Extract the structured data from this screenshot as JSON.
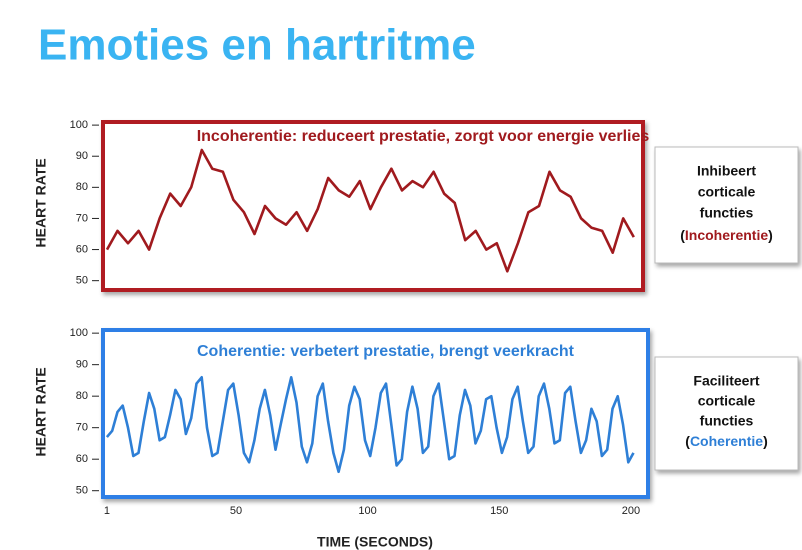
{
  "title": "Emoties en hartritme",
  "chart_data": [
    {
      "type": "line",
      "title": "Incoherentie: reduceert prestatie, zorgt voor energie verlies",
      "ylabel": "HEART RATE",
      "ylim": [
        47,
        101
      ],
      "yticks": [
        50,
        60,
        70,
        80,
        90,
        100
      ],
      "xlim": [
        -0.5,
        204.5
      ],
      "frame_color": "#b01c22",
      "x": [
        1,
        5,
        9,
        13,
        17,
        21,
        25,
        29,
        33,
        37,
        41,
        45,
        49,
        53,
        57,
        61,
        65,
        69,
        73,
        77,
        81,
        85,
        89,
        93,
        97,
        101,
        105,
        109,
        113,
        117,
        121,
        125,
        129,
        133,
        137,
        141,
        145,
        149,
        153,
        157,
        161,
        165,
        169,
        173,
        177,
        181,
        185,
        189,
        193,
        197,
        201
      ],
      "series": [
        {
          "color": "#a01a1e",
          "values": [
            60,
            66,
            62,
            66,
            60,
            70,
            78,
            74,
            80,
            92,
            86,
            85,
            76,
            72,
            65,
            74,
            70,
            68,
            72,
            66,
            73,
            83,
            79,
            77,
            82,
            73,
            80,
            86,
            79,
            82,
            80,
            85,
            78,
            75,
            63,
            66,
            60,
            62,
            53,
            62,
            72,
            74,
            85,
            79,
            77,
            70,
            67,
            66,
            59,
            70,
            64
          ]
        }
      ],
      "annotation": [
        "Inhibeert",
        "corticale",
        "functies"
      ],
      "annotation_last": [
        "(",
        "Incoherentie",
        ")"
      ]
    },
    {
      "type": "line",
      "title": "Coherentie: verbetert prestatie, brengt veerkracht",
      "ylabel": "HEART RATE",
      "ylim": [
        48,
        101
      ],
      "yticks": [
        50,
        60,
        70,
        80,
        90,
        100
      ],
      "xlim": [
        -0.5,
        206.5
      ],
      "xlabel": "TIME (SECONDS)",
      "xticks": [
        1,
        50,
        100,
        150,
        200
      ],
      "frame_color": "#2f7fe6",
      "x": [
        1,
        3,
        5,
        7,
        9,
        11,
        13,
        15,
        17,
        19,
        21,
        23,
        25,
        27,
        29,
        31,
        33,
        35,
        37,
        39,
        41,
        43,
        45,
        47,
        49,
        51,
        53,
        55,
        57,
        59,
        61,
        63,
        65,
        67,
        69,
        71,
        73,
        75,
        77,
        79,
        81,
        83,
        85,
        87,
        89,
        91,
        93,
        95,
        97,
        99,
        101,
        103,
        105,
        107,
        109,
        111,
        113,
        115,
        117,
        119,
        121,
        123,
        125,
        127,
        129,
        131,
        133,
        135,
        137,
        139,
        141,
        143,
        145,
        147,
        149,
        151,
        153,
        155,
        157,
        159,
        161,
        163,
        165,
        167,
        169,
        171,
        173,
        175,
        177,
        179,
        181,
        183,
        185,
        187,
        189,
        191,
        193,
        195,
        197,
        199,
        201
      ],
      "series": [
        {
          "color": "#2e7fd6",
          "values": [
            67,
            69,
            75,
            77,
            70,
            61,
            62,
            72,
            81,
            76,
            66,
            67,
            74,
            82,
            79,
            68,
            73,
            84,
            86,
            70,
            61,
            62,
            72,
            82,
            84,
            74,
            62,
            59,
            66,
            76,
            82,
            74,
            63,
            71,
            79,
            86,
            78,
            64,
            59,
            65,
            80,
            84,
            72,
            62,
            56,
            63,
            77,
            83,
            79,
            66,
            61,
            70,
            81,
            84,
            71,
            58,
            60,
            75,
            83,
            76,
            62,
            64,
            80,
            84,
            72,
            60,
            61,
            74,
            82,
            77,
            65,
            69,
            79,
            80,
            70,
            62,
            67,
            79,
            83,
            72,
            62,
            64,
            80,
            84,
            76,
            65,
            66,
            81,
            83,
            72,
            62,
            66,
            76,
            72,
            61,
            63,
            76,
            80,
            71,
            59,
            62
          ]
        }
      ],
      "annotation": [
        "Faciliteert",
        "corticale",
        "functies"
      ],
      "annotation_last": [
        "(",
        "Coherentie",
        ")"
      ]
    }
  ]
}
